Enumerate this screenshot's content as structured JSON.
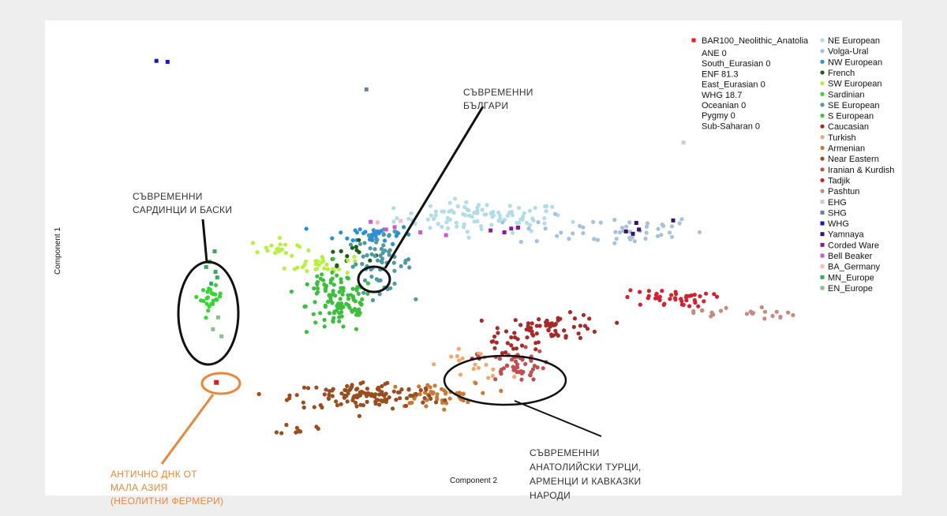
{
  "chart_data": {
    "type": "scatter",
    "title": "",
    "xlabel": "Component 2",
    "ylabel": "Component 1",
    "xlim": [
      0,
      100
    ],
    "ylim": [
      0,
      100
    ],
    "grid": false,
    "legend_placement": "top-right",
    "sample": {
      "name": "BAR100_Neolithic_Anatolia",
      "color": "#e41a1c",
      "marker": "square",
      "admixture": [
        {
          "label": "ANE 0"
        },
        {
          "label": "South_Eurasian 0"
        },
        {
          "label": "ENF 81.3"
        },
        {
          "label": "East_Eurasian 0"
        },
        {
          "label": "WHG 18.7"
        },
        {
          "label": "Oceanian 0"
        },
        {
          "label": "Pygmy 0"
        },
        {
          "label": "Sub-Saharan 0"
        }
      ],
      "x": 20.0,
      "y": 23.8
    },
    "series": [
      {
        "name": "NE European",
        "color": "#b0dde6",
        "marker": "circle",
        "clusters": [
          {
            "cx": 51,
            "cy": 58.5,
            "sx": 5.0,
            "sy": 1.6,
            "n": 95
          }
        ]
      },
      {
        "name": "Volga-Ural",
        "color": "#a8c1da",
        "marker": "circle",
        "clusters": [
          {
            "cx": 66,
            "cy": 55.8,
            "sx": 5.5,
            "sy": 1.6,
            "n": 48
          }
        ]
      },
      {
        "name": "NW European",
        "color": "#2a8fd8",
        "marker": "circle",
        "clusters": [
          {
            "cx": 38.5,
            "cy": 55.0,
            "sx": 2.3,
            "sy": 1.0,
            "n": 38
          }
        ]
      },
      {
        "name": "French",
        "color": "#1a5e1a",
        "marker": "circle",
        "clusters": [
          {
            "cx": 35.5,
            "cy": 51.0,
            "sx": 1.4,
            "sy": 1.2,
            "n": 14
          }
        ]
      },
      {
        "name": "SW European",
        "color": "#b8f040",
        "marker": "circle",
        "clusters": [
          {
            "cx": 27.5,
            "cy": 52.0,
            "sx": 1.8,
            "sy": 1.0,
            "n": 20
          },
          {
            "cx": 32.0,
            "cy": 48.5,
            "sx": 2.0,
            "sy": 1.0,
            "n": 28
          }
        ]
      },
      {
        "name": "Sardinian",
        "color": "#33d633",
        "marker": "circle",
        "clusters": [
          {
            "cx": 19.4,
            "cy": 41.5,
            "sx": 0.6,
            "sy": 1.2,
            "n": 24
          }
        ]
      },
      {
        "name": "SE European",
        "color": "#4f9a9e",
        "marker": "circle",
        "clusters": [
          {
            "cx": 39.0,
            "cy": 49.0,
            "sx": 1.9,
            "sy": 3.0,
            "n": 60
          }
        ]
      },
      {
        "name": "S European",
        "color": "#3cbf3c",
        "marker": "circle",
        "clusters": [
          {
            "cx": 34.5,
            "cy": 40.0,
            "sx": 2.0,
            "sy": 3.0,
            "n": 85
          },
          {
            "cx": 33.0,
            "cy": 44.0,
            "sx": 1.6,
            "sy": 1.2,
            "n": 25
          }
        ]
      },
      {
        "name": "Caucasian",
        "color": "#a52a2a",
        "marker": "circle",
        "clusters": [
          {
            "cx": 59.5,
            "cy": 35.5,
            "sx": 3.0,
            "sy": 1.3,
            "n": 60
          },
          {
            "cx": 54.0,
            "cy": 31.5,
            "sx": 2.5,
            "sy": 1.3,
            "n": 20
          }
        ]
      },
      {
        "name": "Turkish",
        "color": "#f0a870",
        "marker": "circle",
        "clusters": [
          {
            "cx": 50.0,
            "cy": 27.5,
            "sx": 2.0,
            "sy": 1.5,
            "n": 20
          }
        ]
      },
      {
        "name": "Armenian",
        "color": "#c87a35",
        "marker": "circle",
        "clusters": [
          {
            "cx": 45.0,
            "cy": 21.0,
            "sx": 2.6,
            "sy": 1.3,
            "n": 48
          }
        ]
      },
      {
        "name": "Near Eastern",
        "color": "#9a4d1e",
        "marker": "circle",
        "clusters": [
          {
            "cx": 37.5,
            "cy": 21.0,
            "sx": 4.3,
            "sy": 1.5,
            "n": 120
          },
          {
            "cx": 29.5,
            "cy": 14.0,
            "sx": 1.0,
            "sy": 0.6,
            "n": 10
          }
        ]
      },
      {
        "name": "Iranian & Kurdish",
        "color": "#c05050",
        "marker": "circle",
        "clusters": [
          {
            "cx": 55.0,
            "cy": 27.5,
            "sx": 1.7,
            "sy": 1.6,
            "n": 48
          }
        ]
      },
      {
        "name": "Tadjik",
        "color": "#d42030",
        "marker": "circle",
        "clusters": [
          {
            "cx": 72.5,
            "cy": 41.5,
            "sx": 2.5,
            "sy": 0.9,
            "n": 42
          }
        ]
      },
      {
        "name": "Pashtun",
        "color": "#c48a80",
        "marker": "circle",
        "clusters": [
          {
            "cx": 81.5,
            "cy": 38.5,
            "sx": 3.0,
            "sy": 0.8,
            "n": 22
          }
        ]
      },
      {
        "name": "EHG",
        "color": "#cccccc",
        "marker": "square",
        "points": [
          [
            74.5,
            74.3
          ]
        ]
      },
      {
        "name": "SHG",
        "color": "#708090",
        "marker": "square",
        "points": [
          [
            37.5,
            85.5
          ]
        ]
      },
      {
        "name": "WHG",
        "color": "#1414c8",
        "marker": "square",
        "points": [
          [
            13.0,
            91.5
          ],
          [
            14.3,
            91.3
          ]
        ]
      },
      {
        "name": "Yamnaya",
        "color": "#3a1070",
        "marker": "square",
        "points": [
          [
            67.8,
            55.6
          ],
          [
            68.6,
            55.1
          ],
          [
            69.3,
            56.0
          ],
          [
            69.0,
            57.4
          ],
          [
            73.3,
            57.9
          ]
        ]
      },
      {
        "name": "Corded Ware",
        "color": "#8a1a9a",
        "marker": "square",
        "points": [
          [
            53.6,
            55.4
          ],
          [
            54.4,
            56.2
          ],
          [
            52.0,
            55.8
          ],
          [
            55.2,
            56.4
          ]
        ]
      },
      {
        "name": "Bell Beaker",
        "color": "#c65ad0",
        "marker": "square",
        "points": [
          [
            39.8,
            56.0
          ],
          [
            40.8,
            56.5
          ],
          [
            43.8,
            55.4
          ],
          [
            46.8,
            54.8
          ],
          [
            38.0,
            57.6
          ]
        ]
      },
      {
        "name": "BA_Germany",
        "color": "#f7b8c8",
        "marker": "square",
        "points": [
          [
            38.8,
            57.5
          ],
          [
            41.5,
            57.8
          ]
        ]
      },
      {
        "name": "MN_Europe",
        "color": "#3aa860",
        "marker": "square",
        "points": [
          [
            19.8,
            51.4
          ],
          [
            19.2,
            49.2
          ],
          [
            19.9,
            47.1
          ],
          [
            19.4,
            44.6
          ],
          [
            20.1,
            45.9
          ],
          [
            18.8,
            48.1
          ]
        ]
      },
      {
        "name": "EN_Europe",
        "color": "#8fba8f",
        "marker": "square",
        "points": [
          [
            20.2,
            37.5
          ],
          [
            20.6,
            33.5
          ],
          [
            19.6,
            35.0
          ]
        ]
      }
    ]
  },
  "annotations": {
    "bulgarians": {
      "lines": [
        "СЪВРЕМЕННИ",
        "БЪЛГАРИ"
      ]
    },
    "sardinians": {
      "lines": [
        "СЪВРЕМЕННИ",
        "САРДИНЦИ И БАСКИ"
      ]
    },
    "ancient": {
      "lines": [
        "АНТИЧНО ДНК ОТ",
        "МАЛА АЗИЯ",
        "(НЕОЛИТНИ ФЕРМЕРИ)"
      ],
      "color": "#e8873a"
    },
    "anatolian": {
      "lines": [
        "СЪВРЕМЕННИ",
        "АНАТОЛИЙСКИ ТУРЦИ,",
        "АРМЕНЦИ И КАВКАЗКИ",
        "НАРОДИ"
      ]
    }
  }
}
